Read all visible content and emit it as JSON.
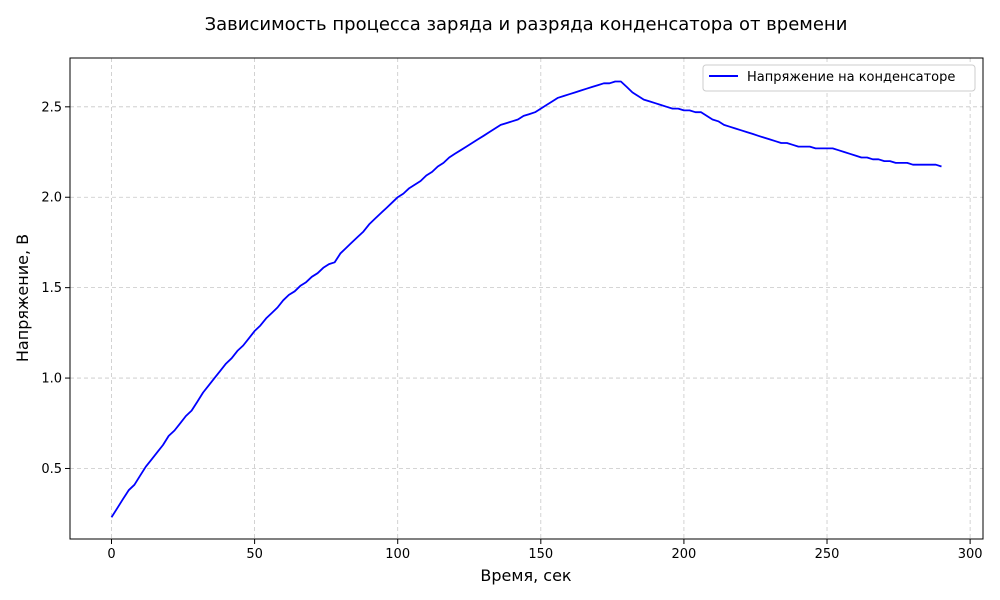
{
  "chart_data": {
    "type": "line",
    "title": "Зависимость процесса заряда и разряда конденсатора от времени",
    "xlabel": "Время, сек",
    "ylabel": "Напряжение, В",
    "xlim": [
      -14.5,
      304.5
    ],
    "ylim": [
      0.11,
      2.77
    ],
    "x_ticks": [
      0,
      50,
      100,
      150,
      200,
      250,
      300
    ],
    "y_ticks": [
      0.5,
      1.0,
      1.5,
      2.0,
      2.5
    ],
    "x_tick_labels": [
      "0",
      "50",
      "100",
      "150",
      "200",
      "250",
      "300"
    ],
    "y_tick_labels": [
      "0.5",
      "1.0",
      "1.5",
      "2.0",
      "2.5"
    ],
    "grid": true,
    "legend_position": "top-right",
    "series": [
      {
        "name": "Напряжение на конденсаторе",
        "color": "#0000ff",
        "x": [
          0,
          2,
          4,
          6,
          8,
          10,
          12,
          14,
          16,
          18,
          20,
          22,
          24,
          26,
          28,
          30,
          32,
          34,
          36,
          38,
          40,
          42,
          44,
          46,
          48,
          50,
          52,
          54,
          56,
          58,
          60,
          62,
          64,
          66,
          68,
          70,
          72,
          74,
          76,
          78,
          80,
          82,
          84,
          86,
          88,
          90,
          92,
          94,
          96,
          98,
          100,
          102,
          104,
          106,
          108,
          110,
          112,
          114,
          116,
          118,
          120,
          122,
          124,
          126,
          128,
          130,
          132,
          134,
          136,
          138,
          140,
          142,
          144,
          146,
          148,
          150,
          152,
          154,
          156,
          158,
          160,
          162,
          164,
          166,
          168,
          170,
          172,
          174,
          176,
          178,
          180,
          182,
          184,
          186,
          188,
          190,
          192,
          194,
          196,
          198,
          200,
          202,
          204,
          206,
          208,
          210,
          212,
          214,
          216,
          218,
          220,
          222,
          224,
          226,
          228,
          230,
          232,
          234,
          236,
          238,
          240,
          242,
          244,
          246,
          248,
          250,
          252,
          254,
          256,
          258,
          260,
          262,
          264,
          266,
          268,
          270,
          272,
          274,
          276,
          278,
          280,
          282,
          284,
          286,
          288,
          290
        ],
        "y": [
          0.23,
          0.28,
          0.33,
          0.38,
          0.41,
          0.46,
          0.51,
          0.55,
          0.59,
          0.63,
          0.68,
          0.71,
          0.75,
          0.79,
          0.82,
          0.87,
          0.92,
          0.96,
          1.0,
          1.04,
          1.08,
          1.11,
          1.15,
          1.18,
          1.22,
          1.26,
          1.29,
          1.33,
          1.36,
          1.39,
          1.43,
          1.46,
          1.48,
          1.51,
          1.53,
          1.56,
          1.58,
          1.61,
          1.63,
          1.64,
          1.69,
          1.72,
          1.75,
          1.78,
          1.81,
          1.85,
          1.88,
          1.91,
          1.94,
          1.97,
          2.0,
          2.02,
          2.05,
          2.07,
          2.09,
          2.12,
          2.14,
          2.17,
          2.19,
          2.22,
          2.24,
          2.26,
          2.28,
          2.3,
          2.32,
          2.34,
          2.36,
          2.38,
          2.4,
          2.41,
          2.42,
          2.43,
          2.45,
          2.46,
          2.47,
          2.49,
          2.51,
          2.53,
          2.55,
          2.56,
          2.57,
          2.58,
          2.59,
          2.6,
          2.61,
          2.62,
          2.63,
          2.63,
          2.64,
          2.64,
          2.61,
          2.58,
          2.56,
          2.54,
          2.53,
          2.52,
          2.51,
          2.5,
          2.49,
          2.49,
          2.48,
          2.48,
          2.47,
          2.47,
          2.45,
          2.43,
          2.42,
          2.4,
          2.39,
          2.38,
          2.37,
          2.36,
          2.35,
          2.34,
          2.33,
          2.32,
          2.31,
          2.3,
          2.3,
          2.29,
          2.28,
          2.28,
          2.28,
          2.27,
          2.27,
          2.27,
          2.27,
          2.26,
          2.25,
          2.24,
          2.23,
          2.22,
          2.22,
          2.21,
          2.21,
          2.2,
          2.2,
          2.19,
          2.19,
          2.19,
          2.18,
          2.18,
          2.18,
          2.18,
          2.18,
          2.17
        ]
      }
    ]
  }
}
